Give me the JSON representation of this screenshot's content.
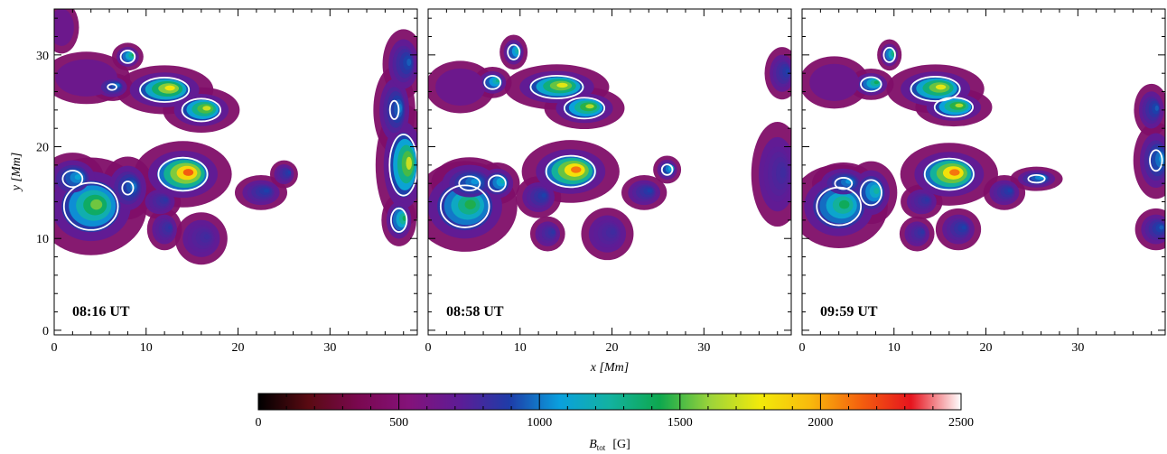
{
  "chart_data": {
    "type": "heatmap",
    "xlabel": "x  [Mm]",
    "ylabel": "y  [Mm]",
    "xlim": [
      0,
      39.5
    ],
    "ylim": [
      -0.5,
      35
    ],
    "xticks": [
      0,
      10,
      20,
      30
    ],
    "yticks": [
      0,
      10,
      20,
      30
    ],
    "panels": [
      {
        "time_label": "08:16 UT",
        "blobs": [
          {
            "x": 4.0,
            "y": 13.5,
            "rx": 3.2,
            "ry": 2.8,
            "b": 1550
          },
          {
            "x": 2.0,
            "y": 16.5,
            "rx": 1.8,
            "ry": 1.5,
            "b": 1100
          },
          {
            "x": 8.0,
            "y": 15.5,
            "rx": 1.5,
            "ry": 1.8,
            "b": 1000
          },
          {
            "x": 11.5,
            "y": 14.0,
            "rx": 1.2,
            "ry": 1.0,
            "b": 850
          },
          {
            "x": 14.0,
            "y": 17.0,
            "rx": 2.8,
            "ry": 1.9,
            "b": 2150
          },
          {
            "x": 12.0,
            "y": 26.2,
            "rx": 2.8,
            "ry": 1.4,
            "b": 1800
          },
          {
            "x": 16.0,
            "y": 24.0,
            "rx": 2.2,
            "ry": 1.3,
            "b": 1700
          },
          {
            "x": 8.0,
            "y": 29.8,
            "rx": 0.9,
            "ry": 0.8,
            "b": 1400
          },
          {
            "x": 6.3,
            "y": 26.5,
            "rx": 1.2,
            "ry": 0.8,
            "b": 1000
          },
          {
            "x": 3.5,
            "y": 27.5,
            "rx": 2.5,
            "ry": 1.5,
            "b": 650
          },
          {
            "x": 12.0,
            "y": 11.0,
            "rx": 1.0,
            "ry": 1.2,
            "b": 850
          },
          {
            "x": 16.0,
            "y": 10.0,
            "rx": 1.5,
            "ry": 1.5,
            "b": 800
          },
          {
            "x": 22.5,
            "y": 15.0,
            "rx": 1.5,
            "ry": 1.0,
            "b": 900
          },
          {
            "x": 25.0,
            "y": 17.0,
            "rx": 0.8,
            "ry": 0.8,
            "b": 900
          },
          {
            "x": 38.0,
            "y": 18.0,
            "rx": 1.6,
            "ry": 3.5,
            "b": 1700
          },
          {
            "x": 37.5,
            "y": 12.0,
            "rx": 1.0,
            "ry": 1.5,
            "b": 1400
          },
          {
            "x": 37.0,
            "y": 24.0,
            "rx": 1.2,
            "ry": 2.5,
            "b": 1000
          },
          {
            "x": 38.0,
            "y": 29.0,
            "rx": 1.2,
            "ry": 2.0,
            "b": 950
          },
          {
            "x": 0.8,
            "y": 33.0,
            "rx": 1.0,
            "ry": 1.5,
            "b": 650
          }
        ]
      },
      {
        "time_label": "08:58 UT",
        "blobs": [
          {
            "x": 4.0,
            "y": 13.5,
            "rx": 3.0,
            "ry": 2.6,
            "b": 1450
          },
          {
            "x": 4.5,
            "y": 16.0,
            "rx": 2.2,
            "ry": 1.5,
            "b": 1050
          },
          {
            "x": 7.5,
            "y": 16.0,
            "rx": 1.3,
            "ry": 1.2,
            "b": 1200
          },
          {
            "x": 12.0,
            "y": 14.5,
            "rx": 1.3,
            "ry": 1.2,
            "b": 900
          },
          {
            "x": 15.5,
            "y": 17.3,
            "rx": 2.8,
            "ry": 1.8,
            "b": 2100
          },
          {
            "x": 14.0,
            "y": 26.5,
            "rx": 3.0,
            "ry": 1.3,
            "b": 1750
          },
          {
            "x": 17.0,
            "y": 24.2,
            "rx": 2.3,
            "ry": 1.2,
            "b": 1650
          },
          {
            "x": 9.3,
            "y": 30.3,
            "rx": 0.8,
            "ry": 1.0,
            "b": 1300
          },
          {
            "x": 7.0,
            "y": 27.0,
            "rx": 1.1,
            "ry": 0.9,
            "b": 1300
          },
          {
            "x": 3.5,
            "y": 26.5,
            "rx": 2.0,
            "ry": 1.5,
            "b": 650
          },
          {
            "x": 13.0,
            "y": 10.5,
            "rx": 1.0,
            "ry": 1.0,
            "b": 850
          },
          {
            "x": 19.5,
            "y": 10.5,
            "rx": 1.5,
            "ry": 1.5,
            "b": 800
          },
          {
            "x": 23.5,
            "y": 15.0,
            "rx": 1.3,
            "ry": 1.0,
            "b": 900
          },
          {
            "x": 26.0,
            "y": 17.5,
            "rx": 0.8,
            "ry": 0.8,
            "b": 1200
          },
          {
            "x": 38.0,
            "y": 17.0,
            "rx": 1.5,
            "ry": 3.0,
            "b": 800
          },
          {
            "x": 38.5,
            "y": 28.0,
            "rx": 1.0,
            "ry": 1.5,
            "b": 900
          }
        ]
      },
      {
        "time_label": "09:59 UT",
        "blobs": [
          {
            "x": 4.0,
            "y": 13.5,
            "rx": 2.8,
            "ry": 2.4,
            "b": 1400
          },
          {
            "x": 7.5,
            "y": 15.0,
            "rx": 1.5,
            "ry": 1.8,
            "b": 1250
          },
          {
            "x": 4.5,
            "y": 16.0,
            "rx": 1.8,
            "ry": 1.2,
            "b": 1050
          },
          {
            "x": 13.0,
            "y": 14.0,
            "rx": 1.2,
            "ry": 1.0,
            "b": 850
          },
          {
            "x": 16.0,
            "y": 17.0,
            "rx": 2.8,
            "ry": 1.8,
            "b": 2100
          },
          {
            "x": 14.5,
            "y": 26.3,
            "rx": 2.8,
            "ry": 1.4,
            "b": 1750
          },
          {
            "x": 16.5,
            "y": 24.3,
            "rx": 2.2,
            "ry": 1.1,
            "b": 1650
          },
          {
            "x": 9.5,
            "y": 30.0,
            "rx": 0.7,
            "ry": 0.9,
            "b": 1450
          },
          {
            "x": 7.5,
            "y": 26.8,
            "rx": 1.3,
            "ry": 0.9,
            "b": 1400
          },
          {
            "x": 3.5,
            "y": 27.0,
            "rx": 2.0,
            "ry": 1.5,
            "b": 650
          },
          {
            "x": 12.5,
            "y": 10.5,
            "rx": 1.0,
            "ry": 1.0,
            "b": 850
          },
          {
            "x": 17.0,
            "y": 11.0,
            "rx": 1.3,
            "ry": 1.2,
            "b": 900
          },
          {
            "x": 22.0,
            "y": 15.0,
            "rx": 1.2,
            "ry": 1.0,
            "b": 900
          },
          {
            "x": 25.5,
            "y": 16.5,
            "rx": 1.5,
            "ry": 0.7,
            "b": 1100
          },
          {
            "x": 38.5,
            "y": 18.5,
            "rx": 1.3,
            "ry": 2.2,
            "b": 1050
          },
          {
            "x": 38.0,
            "y": 24.0,
            "rx": 1.0,
            "ry": 1.5,
            "b": 950
          },
          {
            "x": 38.5,
            "y": 11.0,
            "rx": 1.2,
            "ry": 1.2,
            "b": 950
          }
        ]
      }
    ],
    "colorbar": {
      "label": "B",
      "label_sub": "tot",
      "label_unit": "[G]",
      "range": [
        0,
        2500
      ],
      "ticks": [
        0,
        500,
        1000,
        1500,
        2000,
        2500
      ],
      "colors": [
        "#000000",
        "#5a0a12",
        "#7a0850",
        "#84127a",
        "#5e1c96",
        "#1e3ca8",
        "#0aa0de",
        "#13b2a0",
        "#0ea84e",
        "#9cd43a",
        "#f2ea0a",
        "#f9b90c",
        "#f4600e",
        "#e6141e",
        "#ffffff"
      ]
    },
    "contour_level": 1000,
    "contour_color": "#ffffff"
  }
}
